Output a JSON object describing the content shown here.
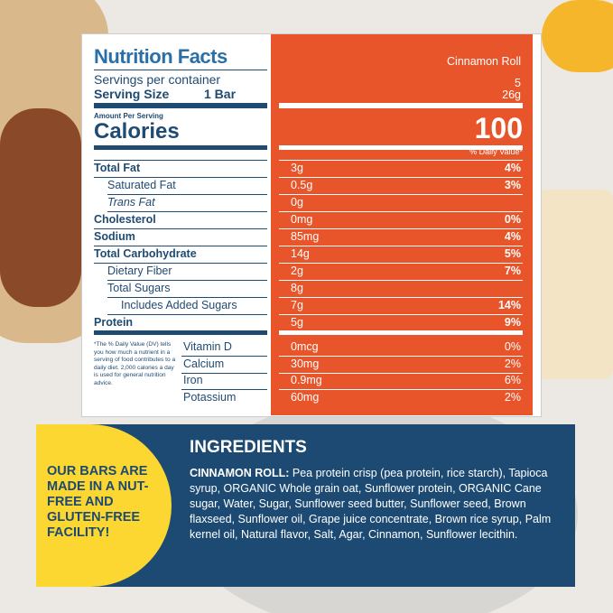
{
  "nutrition": {
    "title": "Nutrition Facts",
    "servings_label": "Servings per container",
    "serving_size_label": "Serving Size",
    "serving_size_unit": "1 Bar",
    "product": "Cinnamon Roll",
    "servings": "5",
    "serving_size": "26g",
    "amount_per_serving": "Amount Per Serving",
    "calories_label": "Calories",
    "calories": "100",
    "dv_header": "% Daily Value*",
    "rows": [
      {
        "label": "Total Fat",
        "amount": "3g",
        "dv": "4%"
      },
      {
        "label": "Saturated Fat",
        "amount": "0.5g",
        "dv": "3%"
      },
      {
        "label": "Trans Fat",
        "amount": "0g"
      },
      {
        "label": "Cholesterol",
        "amount": "0mg",
        "dv": "0%"
      },
      {
        "label": "Sodium",
        "amount": "85mg",
        "dv": "4%"
      },
      {
        "label": "Total Carbohydrate",
        "amount": "14g",
        "dv": "5%"
      },
      {
        "label": "Dietary Fiber",
        "amount": "2g",
        "dv": "7%"
      },
      {
        "label": "Total Sugars",
        "amount": "8g"
      },
      {
        "label": "Includes Added Sugars",
        "amount": "7g",
        "dv": "14%"
      },
      {
        "label": "Protein",
        "amount": "5g",
        "dv": "9%"
      }
    ],
    "vitamins": [
      {
        "label": "Vitamin D",
        "amount": "0mcg",
        "dv": "0%"
      },
      {
        "label": "Calcium",
        "amount": "30mg",
        "dv": "2%"
      },
      {
        "label": "Iron",
        "amount": "0.9mg",
        "dv": "6%"
      },
      {
        "label": "Potassium",
        "amount": "60mg",
        "dv": "2%"
      }
    ],
    "footnote": "*The % Daily Value (DV) tells you how much a nutrient in a serving of food contributes to a daily diet. 2,000 calories a day is used for general nutrition advice."
  },
  "callout": "OUR BARS ARE MADE IN A NUT-FREE AND GLUTEN-FREE FACILITY!",
  "ingredients": {
    "heading": "INGREDIENTS",
    "product": "CINNAMON ROLL:",
    "text": "Pea protein crisp (pea protein, rice starch), Tapioca syrup, ORGANIC Whole grain oat, Sunflower protein, ORGANIC Cane sugar, Water, Sugar, Sunflower seed butter, Sunflower seed, Brown flaxseed, Sunflower oil, Grape juice concentrate, Brown rice syrup, Palm kernel oil, Natural flavor, Salt, Agar, Cinnamon, Sunflower lecithin."
  }
}
